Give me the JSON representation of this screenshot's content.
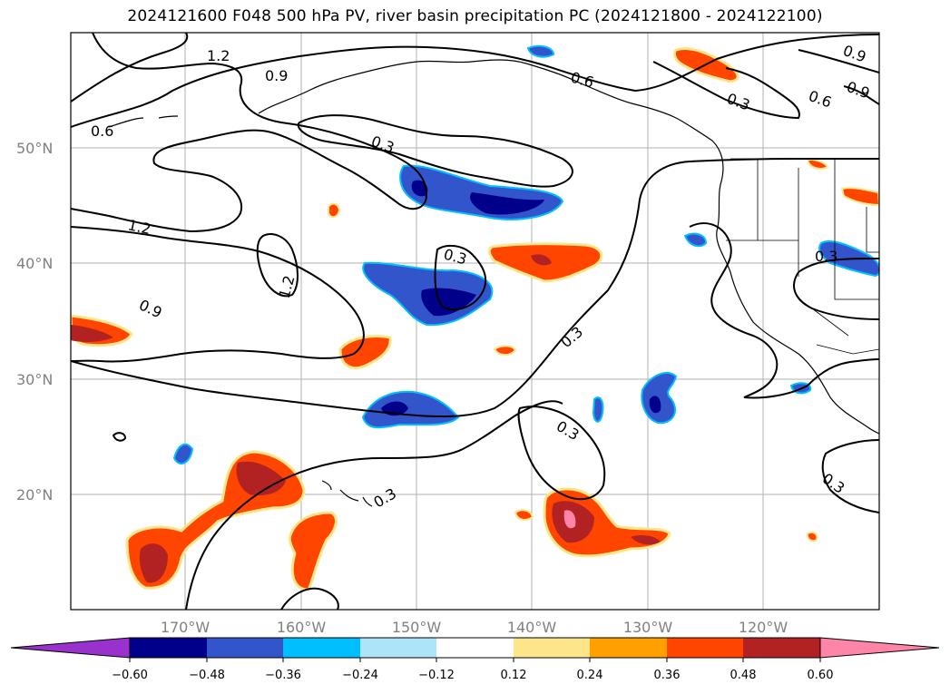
{
  "title": "2024121600 F048 500 hPa PV, river basin precipitation PC (2024121800 - 2024122100)",
  "latitude_labels": [
    "50°N",
    "40°N",
    "30°N",
    "20°N"
  ],
  "longitude_labels": [
    "170°W",
    "160°W",
    "150°W",
    "140°W",
    "130°W",
    "120°W"
  ],
  "contour_labels": [
    "1.2",
    "0.9",
    "0.6",
    "0.3",
    "0.3",
    "0.6",
    "0.9",
    "0.9",
    "0.6",
    "1.2",
    "1.2",
    "0.9",
    "0.3",
    "0.3",
    "0.3",
    "0.3",
    "0.3",
    "0.3"
  ],
  "colorbar": {
    "tick_labels": [
      "−0.60",
      "−0.48",
      "−0.36",
      "−0.24",
      "−0.12",
      "0.12",
      "0.24",
      "0.36",
      "0.48",
      "0.60"
    ],
    "colors": [
      "#9932cc",
      "#00008b",
      "#3355cc",
      "#00bfff",
      "#aee4fa",
      "#ffffff",
      "#fde68a",
      "#ffa000",
      "#ff4500",
      "#b22222",
      "#ff85a8"
    ],
    "extend": "both"
  },
  "colors": {
    "contour": "#000000",
    "gridline": "#b0b0b0",
    "coastline": "#000000"
  }
}
